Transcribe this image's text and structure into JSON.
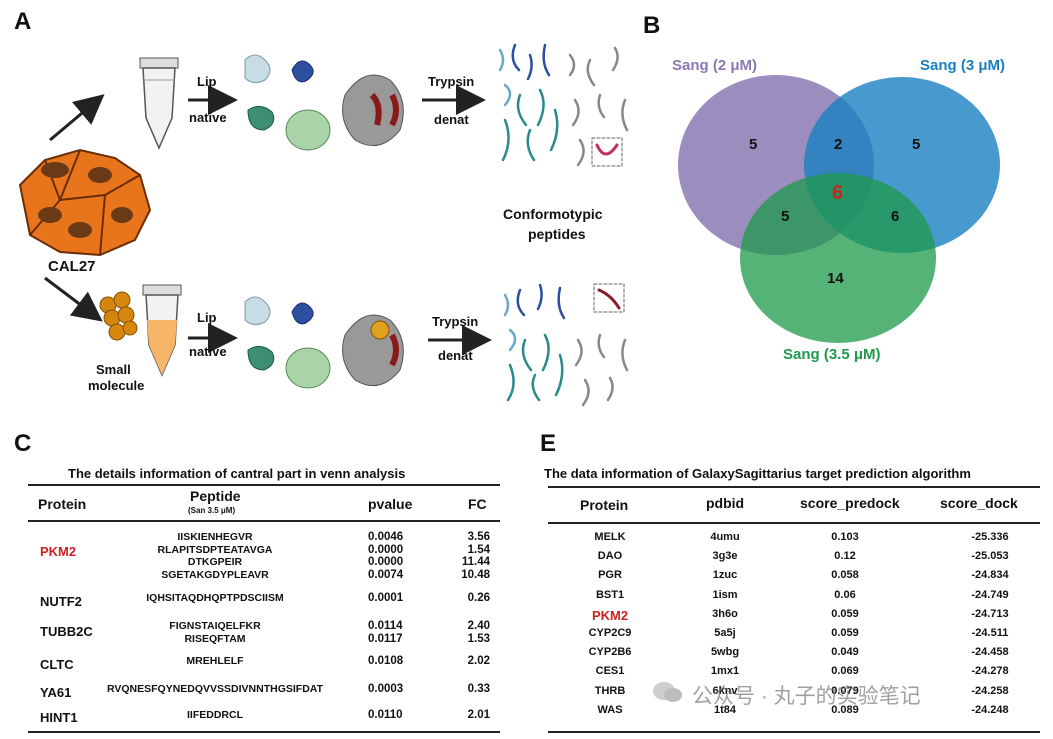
{
  "panels": {
    "a": "A",
    "b": "B",
    "c": "C",
    "e": "E"
  },
  "panel_a": {
    "cell_line": "CAL27",
    "small_molecule": [
      "Small",
      "molecule"
    ],
    "lip_native": [
      "Lip",
      "native"
    ],
    "trypsin_denat": [
      "Trypsin",
      "denat"
    ],
    "result": [
      "Conformotypic",
      "peptides"
    ]
  },
  "venn": {
    "labels": {
      "a": "Sang (2 μM)",
      "b": "Sang (3 μM)",
      "c": "Sang (3.5 μM)"
    },
    "colors": {
      "a": "#8a79b3",
      "b": "#1a7fc0",
      "c": "#1e9a4a",
      "center": "#d21f1f"
    },
    "counts": {
      "only_a": "5",
      "only_b": "5",
      "only_c": "14",
      "ab": "2",
      "ac": "5",
      "bc": "6",
      "abc": "6"
    }
  },
  "table_c": {
    "title": "The details information of  cantral part in venn analysis",
    "headers": {
      "protein": "Protein",
      "peptide": "Peptide",
      "peptide_sub": "(San 3.5 μM)",
      "pvalue": "pvalue",
      "fc": "FC"
    },
    "rows": [
      {
        "protein": "PKM2",
        "highlight": true,
        "peptides": "IISKIENHEGVR\nRLAPITSDPTEATAVGA\nDTKGPEIR\nSGETAKGDYPLEAVR",
        "pvalues": "0.0046\n0.0000\n0.0000\n0.0074",
        "fcs": "3.56\n1.54\n11.44\n10.48"
      },
      {
        "protein": "NUTF2",
        "highlight": false,
        "peptides": "IQHSITAQDHQPTPDSCIISM",
        "pvalues": "0.0001",
        "fcs": "0.26"
      },
      {
        "protein": "TUBB2C",
        "highlight": false,
        "peptides": "FIGNSTAIQELFKR\nRISEQFTAM",
        "pvalues": "0.0114\n0.0117",
        "fcs": "2.40\n1.53"
      },
      {
        "protein": "CLTC",
        "highlight": false,
        "peptides": "MREHLELF",
        "pvalues": "0.0108",
        "fcs": "2.02"
      },
      {
        "protein": "YA61",
        "highlight": false,
        "peptides": "RVQNESFQYNEDQVVSSDIVNNTHGSIFDAT",
        "pvalues": "0.0003",
        "fcs": "0.33"
      },
      {
        "protein": "HINT1",
        "highlight": false,
        "peptides": "IIFEDDRCL",
        "pvalues": "0.0110",
        "fcs": "2.01"
      }
    ]
  },
  "table_e": {
    "title": "The data information of GalaxySagittarius target prediction algorithm",
    "headers": {
      "protein": "Protein",
      "pdbid": "pdbid",
      "score_predock": "score_predock",
      "score_dock": "score_dock"
    },
    "rows": [
      {
        "protein": "MELK",
        "pdbid": "4umu",
        "predock": "0.103",
        "dock": "-25.336",
        "highlight": false
      },
      {
        "protein": "DAO",
        "pdbid": "3g3e",
        "predock": "0.12",
        "dock": "-25.053",
        "highlight": false
      },
      {
        "protein": "PGR",
        "pdbid": "1zuc",
        "predock": "0.058",
        "dock": "-24.834",
        "highlight": false
      },
      {
        "protein": "BST1",
        "pdbid": "1ism",
        "predock": "0.06",
        "dock": "-24.749",
        "highlight": false
      },
      {
        "protein": "PKM2",
        "pdbid": "3h6o",
        "predock": "0.059",
        "dock": "-24.713",
        "highlight": true
      },
      {
        "protein": "CYP2C9",
        "pdbid": "5a5j",
        "predock": "0.059",
        "dock": "-24.511",
        "highlight": false
      },
      {
        "protein": "CYP2B6",
        "pdbid": "5wbg",
        "predock": "0.049",
        "dock": "-24.458",
        "highlight": false
      },
      {
        "protein": "CES1",
        "pdbid": "1mx1",
        "predock": "0.069",
        "dock": "-24.278",
        "highlight": false
      },
      {
        "protein": "THRB",
        "pdbid": "6knv",
        "predock": "0.079",
        "dock": "-24.258",
        "highlight": false
      },
      {
        "protein": "WAS",
        "pdbid": "1t84",
        "predock": "0.089",
        "dock": "-24.248",
        "highlight": false
      }
    ]
  },
  "watermark": "公众号 · 丸子的实验笔记"
}
